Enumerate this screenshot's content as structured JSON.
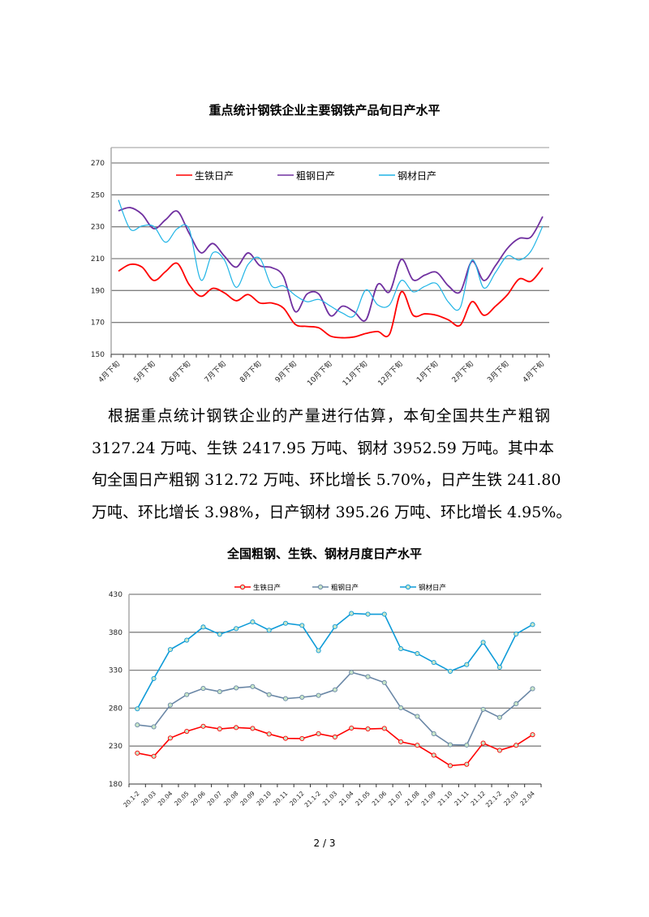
{
  "chart_data": [
    {
      "type": "line",
      "title": "重点统计钢铁企业主要钢铁产品旬日产水平",
      "ylim": [
        150,
        270
      ],
      "yticks": [
        150,
        170,
        190,
        210,
        230,
        250,
        270
      ],
      "grid": true,
      "legend_position": "top",
      "smooth": true,
      "tick_labels": [
        "4月下旬",
        "5月下旬",
        "6月下旬",
        "7月下旬",
        "8月下旬",
        "9月下旬",
        "10月下旬",
        "11月下旬",
        "12月下旬",
        "1月下旬",
        "2月下旬",
        "3月下旬",
        "4月下旬"
      ],
      "series": [
        {
          "name": "生铁日产",
          "color": "#ff0000",
          "values": [
            202.2,
            206.4,
            204.7,
            196.3,
            201.9,
            207,
            193.7,
            186.4,
            191.4,
            188.5,
            183.6,
            187.5,
            182.2,
            182.2,
            179,
            168.8,
            167.5,
            166.6,
            161.4,
            160.4,
            160.9,
            163.1,
            164.3,
            162.6,
            189.2,
            174.5,
            175.4,
            174.5,
            171.6,
            168.2,
            183,
            174.5,
            180.2,
            187.3,
            197.2,
            195.8,
            204.3
          ]
        },
        {
          "name": "粗钢日产",
          "color": "#7030a0",
          "values": [
            240,
            242,
            237.8,
            228.8,
            234.4,
            239.7,
            225.9,
            213.7,
            219.5,
            211.5,
            204.7,
            213.6,
            205.6,
            204.4,
            198.8,
            176.8,
            187.8,
            187.8,
            174.2,
            180.2,
            176.7,
            171.6,
            193.8,
            189.2,
            209.5,
            196.7,
            199.7,
            201.4,
            192.9,
            189.2,
            208.3,
            196.3,
            205.7,
            216.4,
            222.7,
            223.6,
            236.4
          ]
        },
        {
          "name": "钢材日产",
          "color": "#1fb4e6",
          "values": [
            246.8,
            228.5,
            230.5,
            230.2,
            220.3,
            228.8,
            228.5,
            196.6,
            213.6,
            209,
            192,
            206.4,
            210.2,
            192.9,
            192.9,
            187,
            183,
            184.4,
            180.2,
            175.9,
            174.2,
            190.4,
            181,
            181,
            196.3,
            189.2,
            192.6,
            194.3,
            182.7,
            179.3,
            209.1,
            191.6,
            201.4,
            211.7,
            209.1,
            214.7,
            230.4
          ]
        }
      ]
    },
    {
      "type": "line",
      "title": "全国粗钢、生铁、钢材月度日产水平",
      "ylim": [
        180,
        430
      ],
      "yticks": [
        180,
        230,
        280,
        330,
        380,
        430
      ],
      "grid": true,
      "legend_position": "top",
      "markers": true,
      "categories": [
        "20.1-2",
        "20.03",
        "20.04",
        "20.05",
        "20.06",
        "20.07",
        "20.08",
        "20.09",
        "20.10",
        "20.11",
        "20.12",
        "21.1-2",
        "21.03",
        "21.04",
        "21.05",
        "21.06",
        "21.07",
        "21.08",
        "21.09",
        "21.10",
        "21.11",
        "21.12",
        "22.1-2",
        "22.03",
        "22.04"
      ],
      "series": [
        {
          "name": "生铁日产",
          "color": "#ff0000",
          "values": [
            220.8,
            216.6,
            240.6,
            249.4,
            256.1,
            252.6,
            254.4,
            253.3,
            245.9,
            240.2,
            239.9,
            246.3,
            242,
            253.7,
            252.6,
            253.3,
            235.7,
            231.1,
            218,
            204.2,
            206,
            233.9,
            224.4,
            231.1,
            245
          ]
        },
        {
          "name": "粗钢日产",
          "color": "#6a87a6",
          "values": [
            257.9,
            255.4,
            284.1,
            297.8,
            306,
            301.7,
            306.7,
            308.4,
            297.8,
            292.5,
            294.3,
            296.8,
            304.2,
            327.2,
            321.5,
            313.7,
            280.5,
            269.2,
            246.3,
            231.8,
            231.4,
            278.4,
            267.8,
            285.8,
            305.6
          ]
        },
        {
          "name": "钢材日产",
          "color": "#0e9bd8",
          "values": [
            279.1,
            319,
            357.2,
            369.6,
            386.9,
            377.3,
            384.8,
            393.6,
            382.7,
            391.8,
            389,
            355.8,
            387.4,
            404.8,
            403.8,
            403.8,
            358.3,
            351.9,
            340.2,
            328.6,
            337.4,
            366.7,
            333.9,
            377.7,
            390.1
          ]
        }
      ]
    }
  ],
  "paragraph_lines": [
    "根据重点统计钢铁企业的产量进行估算，本旬全国共生产粗钢",
    "3127.24 万吨、生铁 2417.95 万吨、钢材 3952.59 万吨。其中本",
    "旬全国日产粗钢 312.72 万吨、环比增长 5.70%，日产生铁 241.80",
    "万吨、环比增长 3.98%，日产钢材 395.26 万吨、环比增长 4.95%。"
  ],
  "page_number": "2 / 3"
}
